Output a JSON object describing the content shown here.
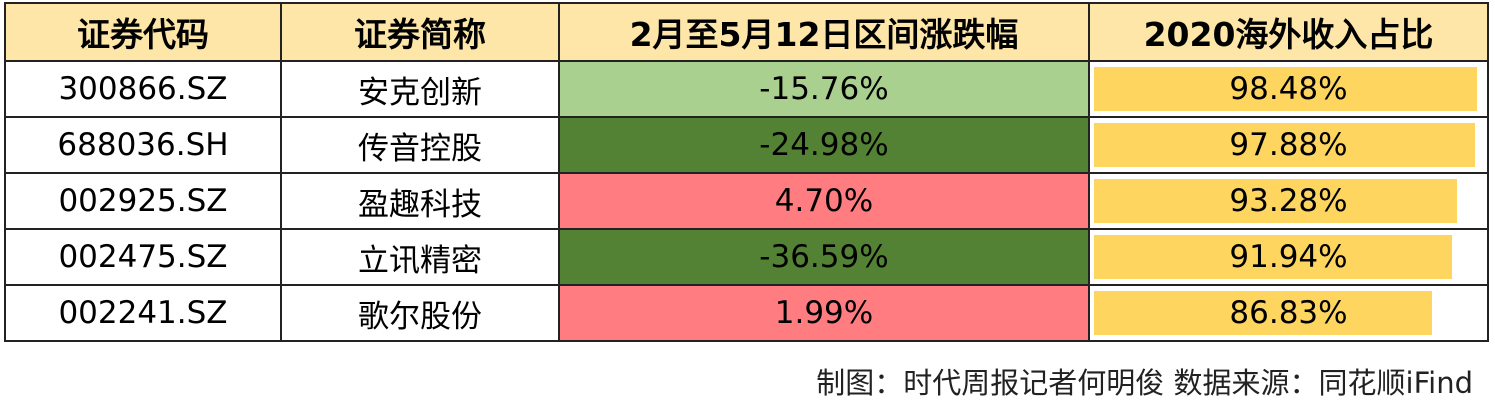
{
  "table": {
    "header": [
      "证券代码",
      "证券简称",
      "2月至5月12日区间涨跌幅",
      "2020海外收入占比"
    ],
    "rows": [
      {
        "code": "300866.SZ",
        "name": "安克创新",
        "change": "-15.76%",
        "change_color": "#a9d08e",
        "share": {
          "value": 98.48,
          "label": "98.48%"
        }
      },
      {
        "code": "688036.SH",
        "name": "传音控股",
        "change": "-24.98%",
        "change_color": "#548235",
        "share": {
          "value": 97.88,
          "label": "97.88%"
        }
      },
      {
        "code": "002925.SZ",
        "name": "盈趣科技",
        "change": "4.70%",
        "change_color": "#ff7c80",
        "share": {
          "value": 93.28,
          "label": "93.28%"
        }
      },
      {
        "code": "002475.SZ",
        "name": "立讯精密",
        "change": "-36.59%",
        "change_color": "#548235",
        "share": {
          "value": 91.94,
          "label": "91.94%"
        }
      },
      {
        "code": "002241.SZ",
        "name": "歌尔股份",
        "change": "1.99%",
        "change_color": "#ff7c80",
        "share": {
          "value": 86.83,
          "label": "86.83%"
        }
      }
    ],
    "bar_color": "#fed55f"
  },
  "footer": "制图：时代周报记者何明俊  数据来源：同花顺iFind"
}
